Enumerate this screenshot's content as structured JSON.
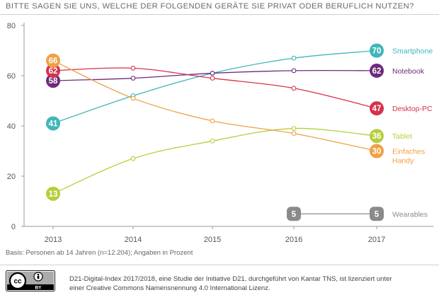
{
  "title": "BITTE SAGEN SIE UNS, WELCHE DER FOLGENDEN GERÄTE SIE PRIVAT ODER BERUFLICH NUTZEN?",
  "footnote": "Basis: Personen ab 14 Jahren (n=12.204); Angaben in Prozent",
  "license": {
    "line1": "D21-Digital-Index 2017/2018, eine Studie der Initiative D21, durchgeführt von Kantar TNS, ist lizenziert unter",
    "line2": "einer Creative Commons Namensnennung 4.0 International Lizenz.",
    "badge_cc": "cc",
    "badge_by": "BY"
  },
  "chart_data": {
    "type": "line",
    "title": "BITTE SAGEN SIE UNS, WELCHE DER FOLGENDEN GERÄTE SIE PRIVAT ODER BERUFLICH NUTZEN?",
    "xlabel": "",
    "ylabel": "",
    "x": [
      2013,
      2014,
      2015,
      2016,
      2017
    ],
    "x_tick_labels": [
      "2013",
      "2014",
      "2015",
      "2016",
      "2017"
    ],
    "ylim": [
      0,
      80
    ],
    "y_ticks": [
      0,
      20,
      40,
      60,
      80
    ],
    "y_tick_labels": [
      "0",
      "20",
      "40",
      "60",
      "80"
    ],
    "grid": false,
    "series": [
      {
        "name": "Smartphone",
        "label": "Smartphone",
        "color": "#3fb6b8",
        "values": [
          41,
          52,
          61,
          67,
          70
        ],
        "start_label": "41",
        "end_label": "70"
      },
      {
        "name": "Notebook",
        "label": "Notebook",
        "color": "#6d2b7b",
        "values": [
          58,
          59,
          61,
          62,
          62
        ],
        "start_label": "58",
        "end_label": "62"
      },
      {
        "name": "Desktop-PC",
        "label": "Desktop-PC",
        "color": "#d6334a",
        "values": [
          62,
          63,
          59,
          55,
          47
        ],
        "start_label": "62",
        "end_label": "47"
      },
      {
        "name": "Tablet",
        "label": "Tablet",
        "color": "#b5cf3c",
        "values": [
          13,
          27,
          34,
          39,
          36
        ],
        "start_label": "13",
        "end_label": "36"
      },
      {
        "name": "Einfaches Handy",
        "label": "Einfaches\nHandy",
        "color": "#f0a043",
        "values": [
          66,
          51,
          42,
          37,
          30
        ],
        "start_label": "66",
        "end_label": "30"
      },
      {
        "name": "Wearables",
        "label": "Wearables",
        "color": "#8a8a8a",
        "values": [
          null,
          null,
          null,
          5,
          5
        ],
        "start_label": "5",
        "end_label": "5"
      }
    ]
  }
}
